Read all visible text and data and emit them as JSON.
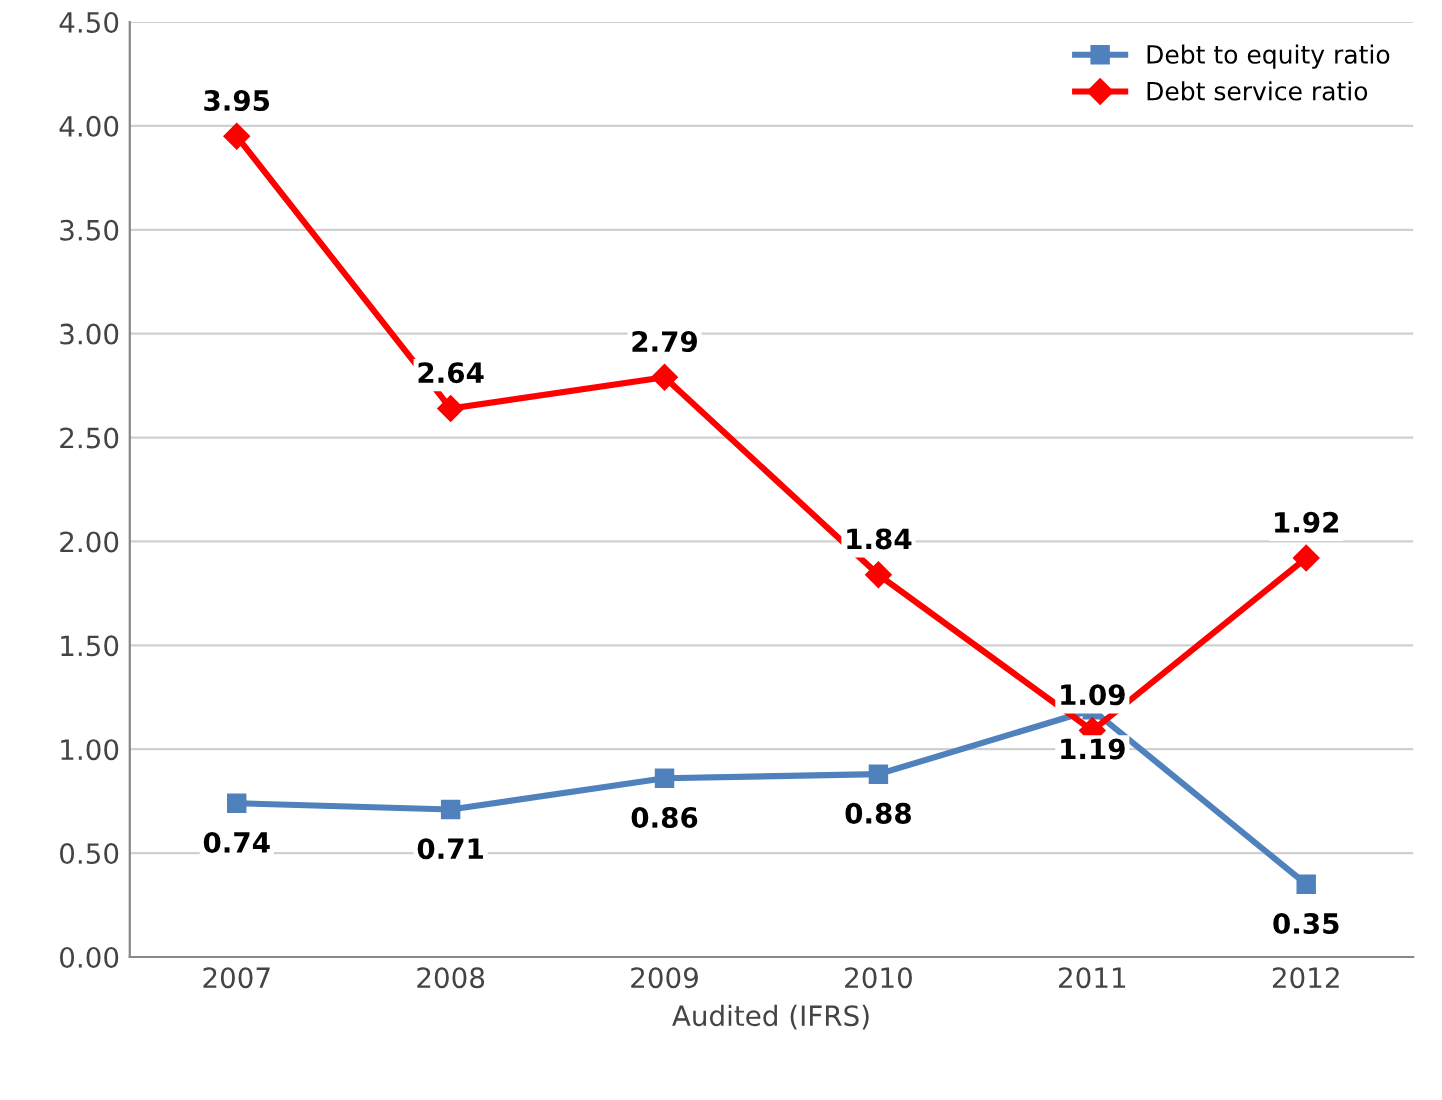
{
  "chart_data": {
    "type": "line",
    "xlabel": "Audited (IFRS)",
    "categories": [
      "2007",
      "2008",
      "2009",
      "2010",
      "2011",
      "2012"
    ],
    "series": [
      {
        "name": "Debt to equity ratio",
        "color": "#4f81bd",
        "marker": "square",
        "values": [
          0.74,
          0.71,
          0.86,
          0.88,
          1.19,
          0.35
        ]
      },
      {
        "name": "Debt service ratio",
        "color": "#ff0000",
        "marker": "diamond",
        "values": [
          3.95,
          2.64,
          2.79,
          1.84,
          1.09,
          1.92
        ]
      }
    ],
    "ylim": [
      0,
      4.5
    ],
    "yticks": [
      {
        "value": 0,
        "label": "0.00"
      },
      {
        "value": 0.5,
        "label": "0.50"
      },
      {
        "value": 1,
        "label": "1.00"
      },
      {
        "value": 1.5,
        "label": "1.50"
      },
      {
        "value": 2,
        "label": "2.00"
      },
      {
        "value": 2.5,
        "label": "2.50"
      },
      {
        "value": 3,
        "label": "3.00"
      },
      {
        "value": 3.5,
        "label": "3.50"
      },
      {
        "value": 4,
        "label": "4.00"
      },
      {
        "value": 4.5,
        "label": "4.50"
      }
    ],
    "grid": "y",
    "legend": "top right",
    "data_labels": true,
    "line_style": "solid"
  }
}
